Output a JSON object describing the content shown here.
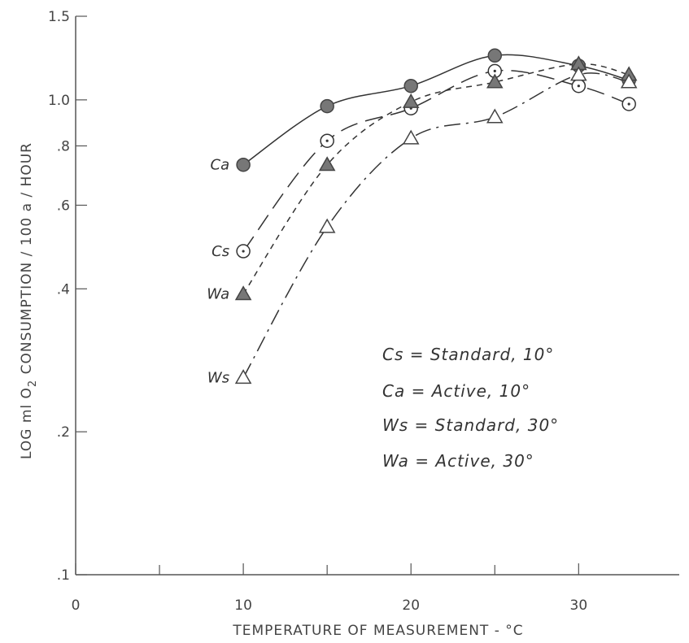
{
  "chart_data": {
    "type": "line",
    "xlabel": "TEMPERATURE OF MEASUREMENT - °C",
    "ylabel": "LOG ml O2 CONSUMPTION / 100g / HOUR",
    "ylabel_parts": {
      "pre": "LOG ml O",
      "sub": "2",
      "post": " CONSUMPTION / 100 a / HOUR"
    },
    "xlim": [
      0,
      36
    ],
    "ylim": [
      0.1,
      1.5
    ],
    "yscale": "log",
    "x_ticks": [
      0,
      10,
      20,
      30
    ],
    "x_minor_ticks": [
      5,
      15,
      25
    ],
    "y_ticks": [
      {
        "value": 0.1,
        "label": ".1"
      },
      {
        "value": 0.2,
        "label": ".2"
      },
      {
        "value": 0.4,
        "label": ".4"
      },
      {
        "value": 0.6,
        "label": ".6"
      },
      {
        "value": 0.8,
        "label": ".8"
      },
      {
        "value": 1.0,
        "label": "1.0"
      },
      {
        "value": 1.5,
        "label": "1.5"
      }
    ],
    "grid": false,
    "series": [
      {
        "name": "Ca",
        "marker": "filled-circle",
        "line": "solid",
        "x": [
          10,
          15,
          20,
          25,
          30,
          33
        ],
        "y": [
          0.73,
          0.97,
          1.07,
          1.24,
          1.18,
          1.1
        ]
      },
      {
        "name": "Cs",
        "marker": "dotted-circle",
        "line": "long-dash",
        "x": [
          10,
          15,
          20,
          25,
          30,
          33
        ],
        "y": [
          0.48,
          0.82,
          0.96,
          1.15,
          1.07,
          0.98
        ]
      },
      {
        "name": "Wa",
        "marker": "filled-triangle",
        "line": "short-dash",
        "x": [
          10,
          15,
          20,
          25,
          30,
          33
        ],
        "y": [
          0.39,
          0.73,
          0.99,
          1.09,
          1.19,
          1.13
        ]
      },
      {
        "name": "Ws",
        "marker": "open-triangle",
        "line": "dash-dot",
        "x": [
          10,
          15,
          20,
          25,
          30,
          33
        ],
        "y": [
          0.26,
          0.54,
          0.83,
          0.92,
          1.13,
          1.09
        ]
      }
    ],
    "legend": [
      "Cs = Standard, 10°",
      "Ca = Active, 10°",
      "Ws = Standard, 30°",
      "Wa = Active, 30°"
    ],
    "legend_placement": "lower-right"
  }
}
